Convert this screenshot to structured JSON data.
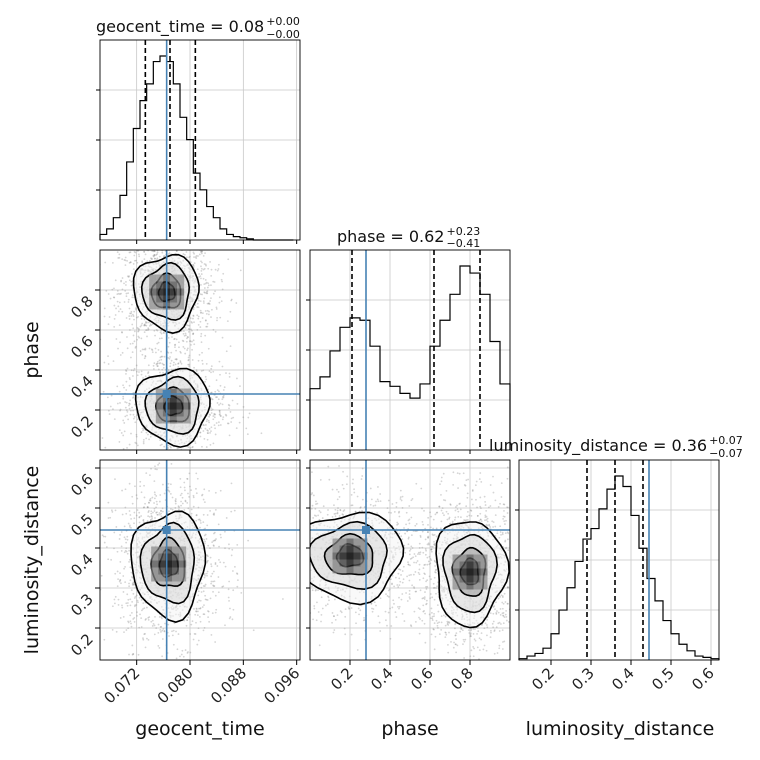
{
  "chart_data": {
    "type": "corner",
    "parameters": [
      "geocent_time",
      "phase",
      "luminosity_distance"
    ],
    "axis_labels": {
      "x": [
        "geocent_time",
        "phase",
        "luminosity_distance"
      ],
      "y": [
        "phase",
        "luminosity_distance"
      ]
    },
    "truths": [
      0.0765,
      0.28,
      0.445
    ],
    "ranges": [
      [
        0.0665,
        0.0965
      ],
      [
        0.0,
        1.0
      ],
      [
        0.12,
        0.62
      ]
    ],
    "ticks": {
      "geocent_time": {
        "values": [
          0.072,
          0.08,
          0.088,
          0.096
        ],
        "labels": [
          "0.072",
          "0.080",
          "0.088",
          "0.096"
        ]
      },
      "phase": {
        "values": [
          0.2,
          0.4,
          0.6,
          0.8
        ],
        "labels": [
          "0.2",
          "0.4",
          "0.6",
          "0.8"
        ]
      },
      "luminosity_distance": {
        "values": [
          0.2,
          0.3,
          0.4,
          0.5,
          0.6
        ],
        "labels": [
          "0.2",
          "0.3",
          "0.4",
          "0.5",
          "0.6"
        ]
      }
    },
    "titles": [
      {
        "param": "geocent_time",
        "text": "geocent_time = 0.08",
        "upper": "+0.00",
        "lower": "−0.00"
      },
      {
        "param": "phase",
        "text": "phase = 0.62",
        "upper": "+0.23",
        "lower": "−0.41"
      },
      {
        "param": "luminosity_distance",
        "text": "luminosity_distance = 0.36",
        "upper": "+0.07",
        "lower": "−0.07"
      }
    ],
    "quantiles": {
      "geocent_time": [
        0.0733,
        0.077,
        0.0808
      ],
      "phase": [
        0.21,
        0.62,
        0.85
      ],
      "luminosity_distance": [
        0.29,
        0.36,
        0.43
      ]
    },
    "histograms": {
      "geocent_time": {
        "edges": [
          0.0665,
          0.0675,
          0.0685,
          0.0695,
          0.0705,
          0.0715,
          0.0725,
          0.0735,
          0.0745,
          0.0755,
          0.0765,
          0.0775,
          0.0785,
          0.0795,
          0.0805,
          0.0815,
          0.0825,
          0.0835,
          0.0845,
          0.0855,
          0.0865,
          0.0875,
          0.0885,
          0.0895,
          0.0905,
          0.0915,
          0.0925,
          0.0935,
          0.0945,
          0.0955
        ],
        "counts": [
          5,
          10,
          20,
          40,
          70,
          100,
          125,
          140,
          160,
          165,
          160,
          140,
          110,
          90,
          60,
          45,
          30,
          20,
          10,
          5,
          3,
          2,
          1,
          0,
          0,
          0,
          0,
          0,
          0
        ]
      },
      "phase": {
        "edges": [
          0.0,
          0.05,
          0.1,
          0.15,
          0.2,
          0.25,
          0.3,
          0.35,
          0.4,
          0.45,
          0.5,
          0.55,
          0.6,
          0.65,
          0.7,
          0.75,
          0.8,
          0.85,
          0.9,
          0.95,
          1.0
        ],
        "counts": [
          26,
          31,
          42,
          52,
          56,
          55,
          44,
          29,
          27,
          24,
          22,
          28,
          44,
          55,
          66,
          78,
          75,
          66,
          46,
          28
        ]
      },
      "luminosity_distance": {
        "edges": [
          0.12,
          0.14,
          0.16,
          0.18,
          0.2,
          0.22,
          0.24,
          0.26,
          0.28,
          0.3,
          0.32,
          0.34,
          0.36,
          0.38,
          0.4,
          0.42,
          0.44,
          0.46,
          0.48,
          0.5,
          0.52,
          0.54,
          0.56,
          0.58,
          0.6,
          0.62
        ],
        "counts": [
          1,
          3,
          5,
          9,
          20,
          38,
          55,
          75,
          92,
          100,
          115,
          130,
          140,
          132,
          110,
          85,
          62,
          45,
          30,
          20,
          12,
          7,
          3,
          2,
          1
        ]
      }
    },
    "density_clusters": {
      "phase_vs_geocent_time": [
        {
          "x": 0.0765,
          "y": 0.79,
          "sx": 0.0022,
          "sy": 0.085,
          "w": 1.0
        },
        {
          "x": 0.0775,
          "y": 0.22,
          "sx": 0.0025,
          "sy": 0.085,
          "w": 0.75
        }
      ],
      "luminosity_distance_vs_geocent_time": [
        {
          "x": 0.0768,
          "y": 0.36,
          "sx": 0.0025,
          "sy": 0.06,
          "w": 1.0
        }
      ],
      "luminosity_distance_vs_phase": [
        {
          "x": 0.2,
          "y": 0.38,
          "sx": 0.12,
          "sy": 0.05,
          "w": 0.8
        },
        {
          "x": 0.8,
          "y": 0.34,
          "sx": 0.08,
          "sy": 0.06,
          "w": 1.0
        }
      ]
    },
    "colors": {
      "truth": "#4682b4",
      "hist": "#000000",
      "grid": "#c8c8c8",
      "points": "#888888"
    },
    "grid": true
  }
}
